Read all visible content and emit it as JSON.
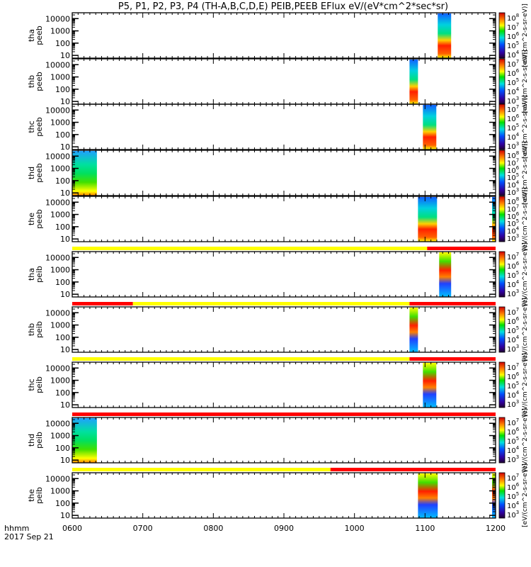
{
  "chart_data": {
    "type": "heatmap",
    "title": "P5, P1, P2, P3, P4 (TH-A,B,C,D,E) PEIB,PEEB EFlux eV/(eV*cm^2*sec*sr)",
    "xlabel": "hhmm",
    "date_label": "2017 Sep 21",
    "xlim_hours": [
      6,
      12
    ],
    "x_ticks": [
      "0600",
      "0700",
      "0800",
      "0900",
      "1000",
      "1100",
      "1200"
    ],
    "ylim": [
      6,
      30000
    ],
    "y_ticks": [
      "10000",
      "1000",
      "100",
      "10"
    ],
    "colorbar_title": "[eV/(cm^2-s-sr-eV)]",
    "panels": [
      {
        "probe": "tha",
        "instrument": "peeb",
        "kind": "e",
        "blocks": [
          [
            11.18,
            11.37
          ]
        ],
        "cbar": [
          "8",
          "7",
          "6",
          "5",
          "4"
        ]
      },
      {
        "probe": "thb",
        "instrument": "peeb",
        "kind": "e",
        "blocks": [
          [
            10.78,
            10.9
          ]
        ],
        "cbar": [
          "7",
          "6",
          "5",
          "4",
          "3"
        ]
      },
      {
        "probe": "thc",
        "instrument": "peeb",
        "kind": "e",
        "blocks": [
          [
            10.97,
            11.16
          ]
        ],
        "cbar": [
          "7",
          "6",
          "5",
          "4",
          "3"
        ]
      },
      {
        "probe": "thd",
        "instrument": "peeb",
        "kind": "d",
        "blocks": [
          [
            6.0,
            6.35
          ]
        ],
        "cbar": [
          "8",
          "7",
          "6",
          "5",
          "4",
          "3"
        ]
      },
      {
        "probe": "the",
        "instrument": "peeb",
        "kind": "e",
        "blocks": [
          [
            10.9,
            11.17
          ],
          [
            11.95,
            12.0
          ]
        ],
        "cbar": [
          "8",
          "7",
          "6",
          "5",
          "4",
          "3"
        ],
        "mode_bar": [
          {
            "from": 6,
            "to": 11.03,
            "color": "#ffff00"
          },
          {
            "from": 11.03,
            "to": 12,
            "color": "#ff0000"
          }
        ]
      },
      {
        "probe": "tha",
        "instrument": "peib",
        "kind": "i",
        "blocks": [
          [
            11.2,
            11.37
          ]
        ],
        "cbar": [
          "7",
          "6",
          "5",
          "4",
          "3"
        ],
        "mode_bar": [
          {
            "from": 6,
            "to": 6.86,
            "color": "#ff0000"
          },
          {
            "from": 6.86,
            "to": 10.78,
            "color": "#ffff00"
          },
          {
            "from": 10.78,
            "to": 12,
            "color": "#ff0000"
          }
        ]
      },
      {
        "probe": "thb",
        "instrument": "peib",
        "kind": "i",
        "blocks": [
          [
            10.78,
            10.9
          ]
        ],
        "cbar": [
          "7",
          "6",
          "5",
          "4",
          "3"
        ],
        "mode_bar": [
          {
            "from": 6,
            "to": 10.78,
            "color": "#ffff00"
          },
          {
            "from": 10.78,
            "to": 12,
            "color": "#ff0000"
          }
        ]
      },
      {
        "probe": "thc",
        "instrument": "peib",
        "kind": "i",
        "blocks": [
          [
            10.97,
            11.16
          ]
        ],
        "cbar": [
          "7",
          "6",
          "5",
          "4",
          "3"
        ],
        "mode_bar": [
          {
            "from": 6,
            "to": 12,
            "color": "#ff0000"
          }
        ]
      },
      {
        "probe": "thd",
        "instrument": "peib",
        "kind": "d",
        "blocks": [
          [
            6.0,
            6.35
          ]
        ],
        "cbar": [
          "7",
          "6",
          "5",
          "4",
          "3"
        ],
        "mode_bar": [
          {
            "from": 6,
            "to": 9.66,
            "color": "#ffff00"
          },
          {
            "from": 9.66,
            "to": 12,
            "color": "#ff0000"
          }
        ]
      },
      {
        "probe": "the",
        "instrument": "peib",
        "kind": "i",
        "blocks": [
          [
            10.9,
            11.18
          ],
          [
            11.95,
            12.0
          ]
        ],
        "cbar": [
          "7",
          "6",
          "5",
          "4",
          "3"
        ]
      }
    ]
  }
}
